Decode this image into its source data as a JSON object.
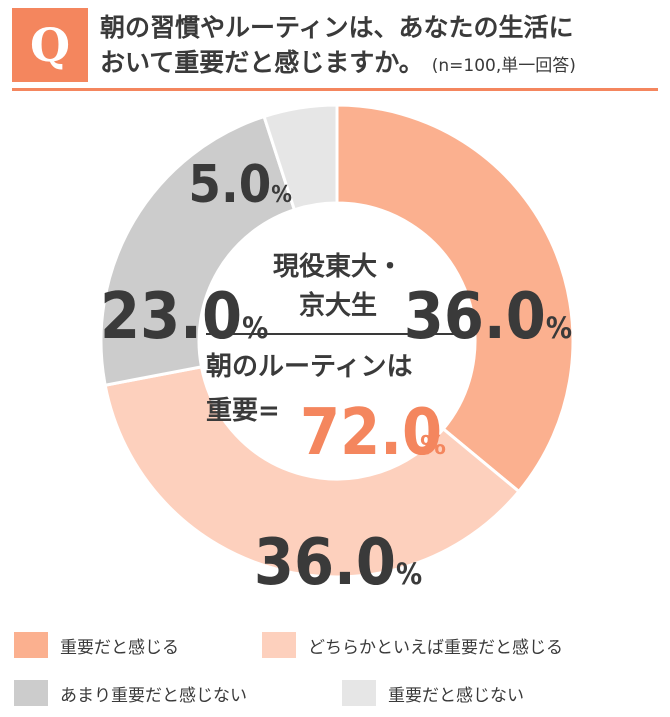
{
  "header": {
    "q_letter": "Q",
    "line1": "朝の習慣やルーティンは、あなたの生活に",
    "line2": "おいて重要だと感じますか。",
    "note": "(n=100,単一回答)"
  },
  "center": {
    "group_line1": "現役東大・",
    "group_line2": "京大生",
    "summary_label_line1": "朝のルーティンは",
    "summary_label_line2": "重要=",
    "summary_value": "72.0",
    "summary_unit": "%"
  },
  "colors": {
    "accent": "#f4865e",
    "important": "#fbb08f",
    "somewhat_important": "#fdd0bd",
    "not_very": "#cccccc",
    "not_important": "#e6e6e6",
    "text": "#3a3a3a"
  },
  "chart_data": {
    "type": "pie",
    "donut": true,
    "categories": [
      "重要だと感じる",
      "どちらかといえば重要だと感じる",
      "あまり重要だと感じない",
      "重要だと感じない"
    ],
    "values": [
      36.0,
      36.0,
      23.0,
      5.0
    ],
    "labels": [
      "36.0",
      "36.0",
      "23.0",
      "5.0"
    ],
    "unit": "%",
    "colors": [
      "#fbb08f",
      "#fdd0bd",
      "#cccccc",
      "#e6e6e6"
    ],
    "legend_position": "bottom"
  }
}
